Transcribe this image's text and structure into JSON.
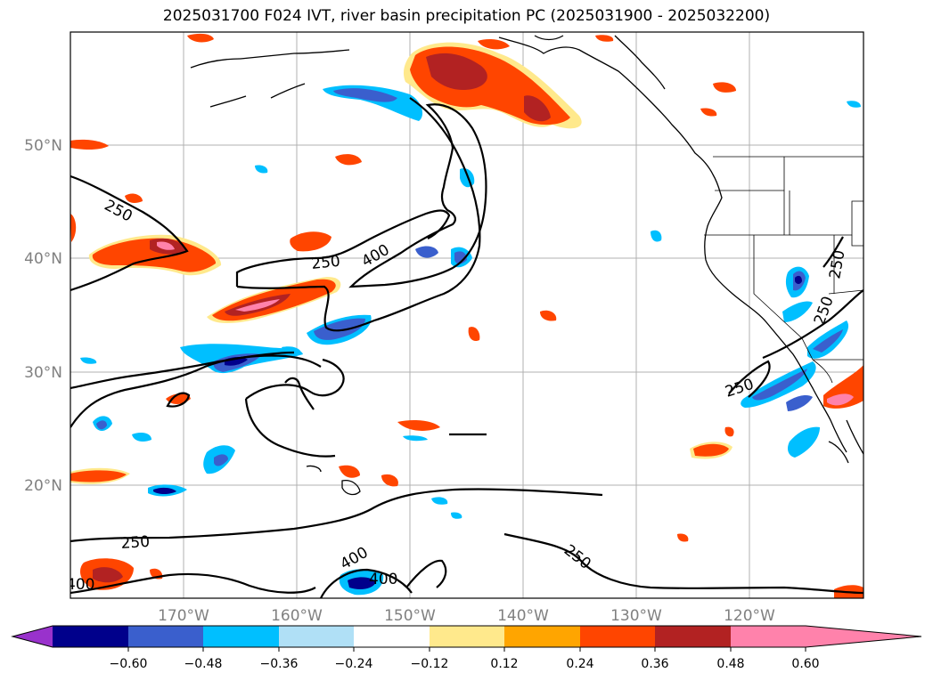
{
  "title": "2025031700 F024 IVT, river basin precipitation PC (2025031900 - 2025032200)",
  "map": {
    "lat_labels": [
      "50°N",
      "40°N",
      "30°N",
      "20°N"
    ],
    "lon_labels": [
      "170°W",
      "160°W",
      "150°W",
      "140°W",
      "130°W",
      "120°W"
    ],
    "ivt_contour_levels": [
      250,
      400
    ],
    "contour_labels": [
      "250",
      "250",
      "400",
      "400",
      "400",
      "250",
      "250",
      "250",
      "250",
      "250",
      "250",
      "400"
    ]
  },
  "colorbar": {
    "ticks": [
      "−0.60",
      "−0.48",
      "−0.36",
      "−0.24",
      "−0.12",
      "0.12",
      "0.24",
      "0.36",
      "0.48",
      "0.60"
    ],
    "colors": [
      "#9932cc",
      "#00008b",
      "#3a5fcd",
      "#00bfff",
      "#b0e0f6",
      "#ffffff",
      "#ffe98c",
      "#ffa500",
      "#ff4500",
      "#b22222",
      "#ff82ab"
    ]
  }
}
